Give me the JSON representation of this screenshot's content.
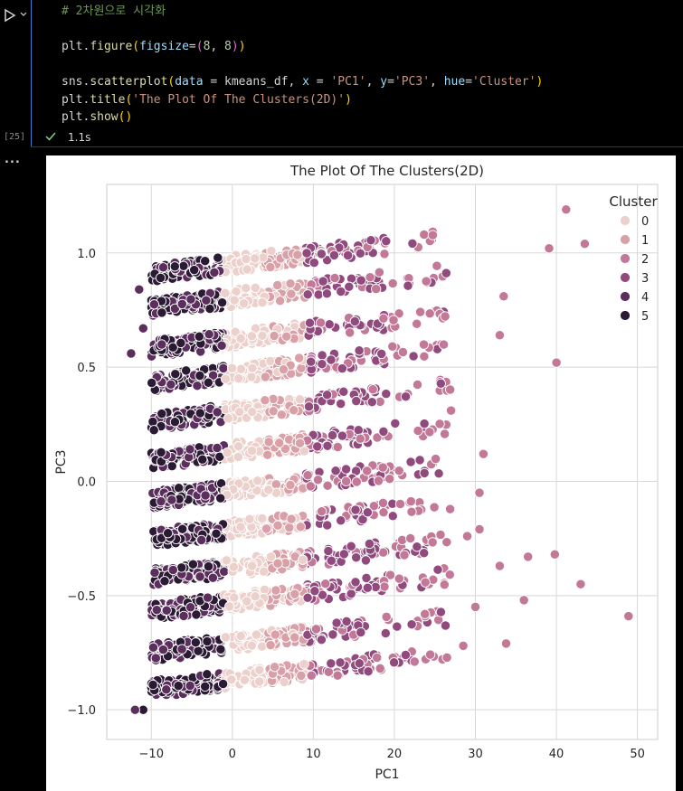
{
  "cell": {
    "execution_count": "[25]",
    "status_time": "1.1s",
    "output_marker": "...",
    "code_lines": [
      [
        {
          "t": "# 2차원으로 시각화",
          "c": "comment"
        }
      ],
      [],
      [
        {
          "t": "plt",
          "c": "op"
        },
        {
          "t": ".",
          "c": "op"
        },
        {
          "t": "figure",
          "c": "fn"
        },
        {
          "t": "(",
          "c": "p1"
        },
        {
          "t": "figsize",
          "c": "var"
        },
        {
          "t": "=",
          "c": "op"
        },
        {
          "t": "(",
          "c": "p2"
        },
        {
          "t": "8",
          "c": "num"
        },
        {
          "t": ", ",
          "c": "op"
        },
        {
          "t": "8",
          "c": "num"
        },
        {
          "t": ")",
          "c": "p2"
        },
        {
          "t": ")",
          "c": "p1"
        }
      ],
      [],
      [
        {
          "t": "sns",
          "c": "op"
        },
        {
          "t": ".",
          "c": "op"
        },
        {
          "t": "scatterplot",
          "c": "fn"
        },
        {
          "t": "(",
          "c": "p1"
        },
        {
          "t": "data",
          "c": "var"
        },
        {
          "t": " = ",
          "c": "op"
        },
        {
          "t": "kmeans_df",
          "c": "op"
        },
        {
          "t": ", ",
          "c": "op"
        },
        {
          "t": "x",
          "c": "var"
        },
        {
          "t": " = ",
          "c": "op"
        },
        {
          "t": "'PC1'",
          "c": "str"
        },
        {
          "t": ", ",
          "c": "op"
        },
        {
          "t": "y",
          "c": "var"
        },
        {
          "t": "=",
          "c": "op"
        },
        {
          "t": "'PC3'",
          "c": "str"
        },
        {
          "t": ", ",
          "c": "op"
        },
        {
          "t": "hue",
          "c": "var"
        },
        {
          "t": "=",
          "c": "op"
        },
        {
          "t": "'Cluster'",
          "c": "str"
        },
        {
          "t": ")",
          "c": "p1"
        }
      ],
      [
        {
          "t": "plt",
          "c": "op"
        },
        {
          "t": ".",
          "c": "op"
        },
        {
          "t": "title",
          "c": "fn"
        },
        {
          "t": "(",
          "c": "p1"
        },
        {
          "t": "'The Plot Of The Clusters(2D)'",
          "c": "str"
        },
        {
          "t": ")",
          "c": "p1"
        }
      ],
      [
        {
          "t": "plt",
          "c": "op"
        },
        {
          "t": ".",
          "c": "op"
        },
        {
          "t": "show",
          "c": "fn"
        },
        {
          "t": "(",
          "c": "p1"
        },
        {
          "t": ")",
          "c": "p1"
        }
      ]
    ]
  },
  "chart_data": {
    "type": "scatter",
    "title": "The Plot Of The Clusters(2D)",
    "xlabel": "PC1",
    "ylabel": "PC3",
    "xlim": [
      -15.5,
      52.5
    ],
    "ylim": [
      -1.13,
      1.3
    ],
    "xticks": [
      -10,
      0,
      10,
      20,
      30,
      40,
      50
    ],
    "yticks": [
      -1.0,
      -0.5,
      0.0,
      0.5,
      1.0
    ],
    "xtick_labels": [
      "−10",
      "0",
      "10",
      "20",
      "30",
      "40",
      "50"
    ],
    "ytick_labels": [
      "−1.0",
      "−0.5",
      "0.0",
      "0.5",
      "1.0"
    ],
    "grid": true,
    "legend": {
      "title": "Cluster",
      "placement": "top-right"
    },
    "series": [
      {
        "name": "0",
        "color": "#ecd0cc"
      },
      {
        "name": "1",
        "color": "#d9a0a8"
      },
      {
        "name": "2",
        "color": "#c27896"
      },
      {
        "name": "3",
        "color": "#914a7e"
      },
      {
        "name": "4",
        "color": "#5c2e5e"
      },
      {
        "name": "5",
        "color": "#2b1a33"
      }
    ],
    "bands": [
      {
        "y": 0.91,
        "slope": 0.0042
      },
      {
        "y": 0.76,
        "slope": 0.0042
      },
      {
        "y": 0.58,
        "slope": 0.0042
      },
      {
        "y": 0.43,
        "slope": 0.0042
      },
      {
        "y": 0.26,
        "slope": 0.0042
      },
      {
        "y": 0.09,
        "slope": 0.0042
      },
      {
        "y": -0.08,
        "slope": 0.0042
      },
      {
        "y": -0.25,
        "slope": 0.0042
      },
      {
        "y": -0.42,
        "slope": 0.0042
      },
      {
        "y": -0.57,
        "slope": 0.0042
      },
      {
        "y": -0.75,
        "slope": 0.0042
      },
      {
        "y": -0.91,
        "slope": 0.0042
      }
    ],
    "outliers": [
      {
        "x": 41.2,
        "y": 1.19,
        "cluster": 2
      },
      {
        "x": 39.1,
        "y": 1.02,
        "cluster": 2
      },
      {
        "x": 43.5,
        "y": 1.04,
        "cluster": 2
      },
      {
        "x": 33.5,
        "y": 0.81,
        "cluster": 2
      },
      {
        "x": 33.0,
        "y": 0.64,
        "cluster": 2
      },
      {
        "x": 40.0,
        "y": 0.52,
        "cluster": 2
      },
      {
        "x": 27.0,
        "y": 0.31,
        "cluster": 2
      },
      {
        "x": 31.0,
        "y": 0.12,
        "cluster": 2
      },
      {
        "x": 30.5,
        "y": -0.05,
        "cluster": 2
      },
      {
        "x": 30.5,
        "y": -0.21,
        "cluster": 2
      },
      {
        "x": 29.0,
        "y": -0.24,
        "cluster": 2
      },
      {
        "x": 33.0,
        "y": -0.37,
        "cluster": 2
      },
      {
        "x": 36.5,
        "y": -0.33,
        "cluster": 2
      },
      {
        "x": 39.8,
        "y": -0.32,
        "cluster": 2
      },
      {
        "x": 43.0,
        "y": -0.45,
        "cluster": 2
      },
      {
        "x": 36.0,
        "y": -0.52,
        "cluster": 2
      },
      {
        "x": 30.0,
        "y": -0.55,
        "cluster": 2
      },
      {
        "x": 48.9,
        "y": -0.59,
        "cluster": 2
      },
      {
        "x": 33.8,
        "y": -0.71,
        "cluster": 2
      },
      {
        "x": 28.5,
        "y": -0.72,
        "cluster": 2
      },
      {
        "x": -11.0,
        "y": -1.0,
        "cluster": 5
      },
      {
        "x": -12.0,
        "y": -1.0,
        "cluster": 4
      },
      {
        "x": -11.5,
        "y": 0.84,
        "cluster": 4
      },
      {
        "x": -12.5,
        "y": 0.56,
        "cluster": 4
      },
      {
        "x": -11.0,
        "y": 0.67,
        "cluster": 4
      }
    ]
  }
}
